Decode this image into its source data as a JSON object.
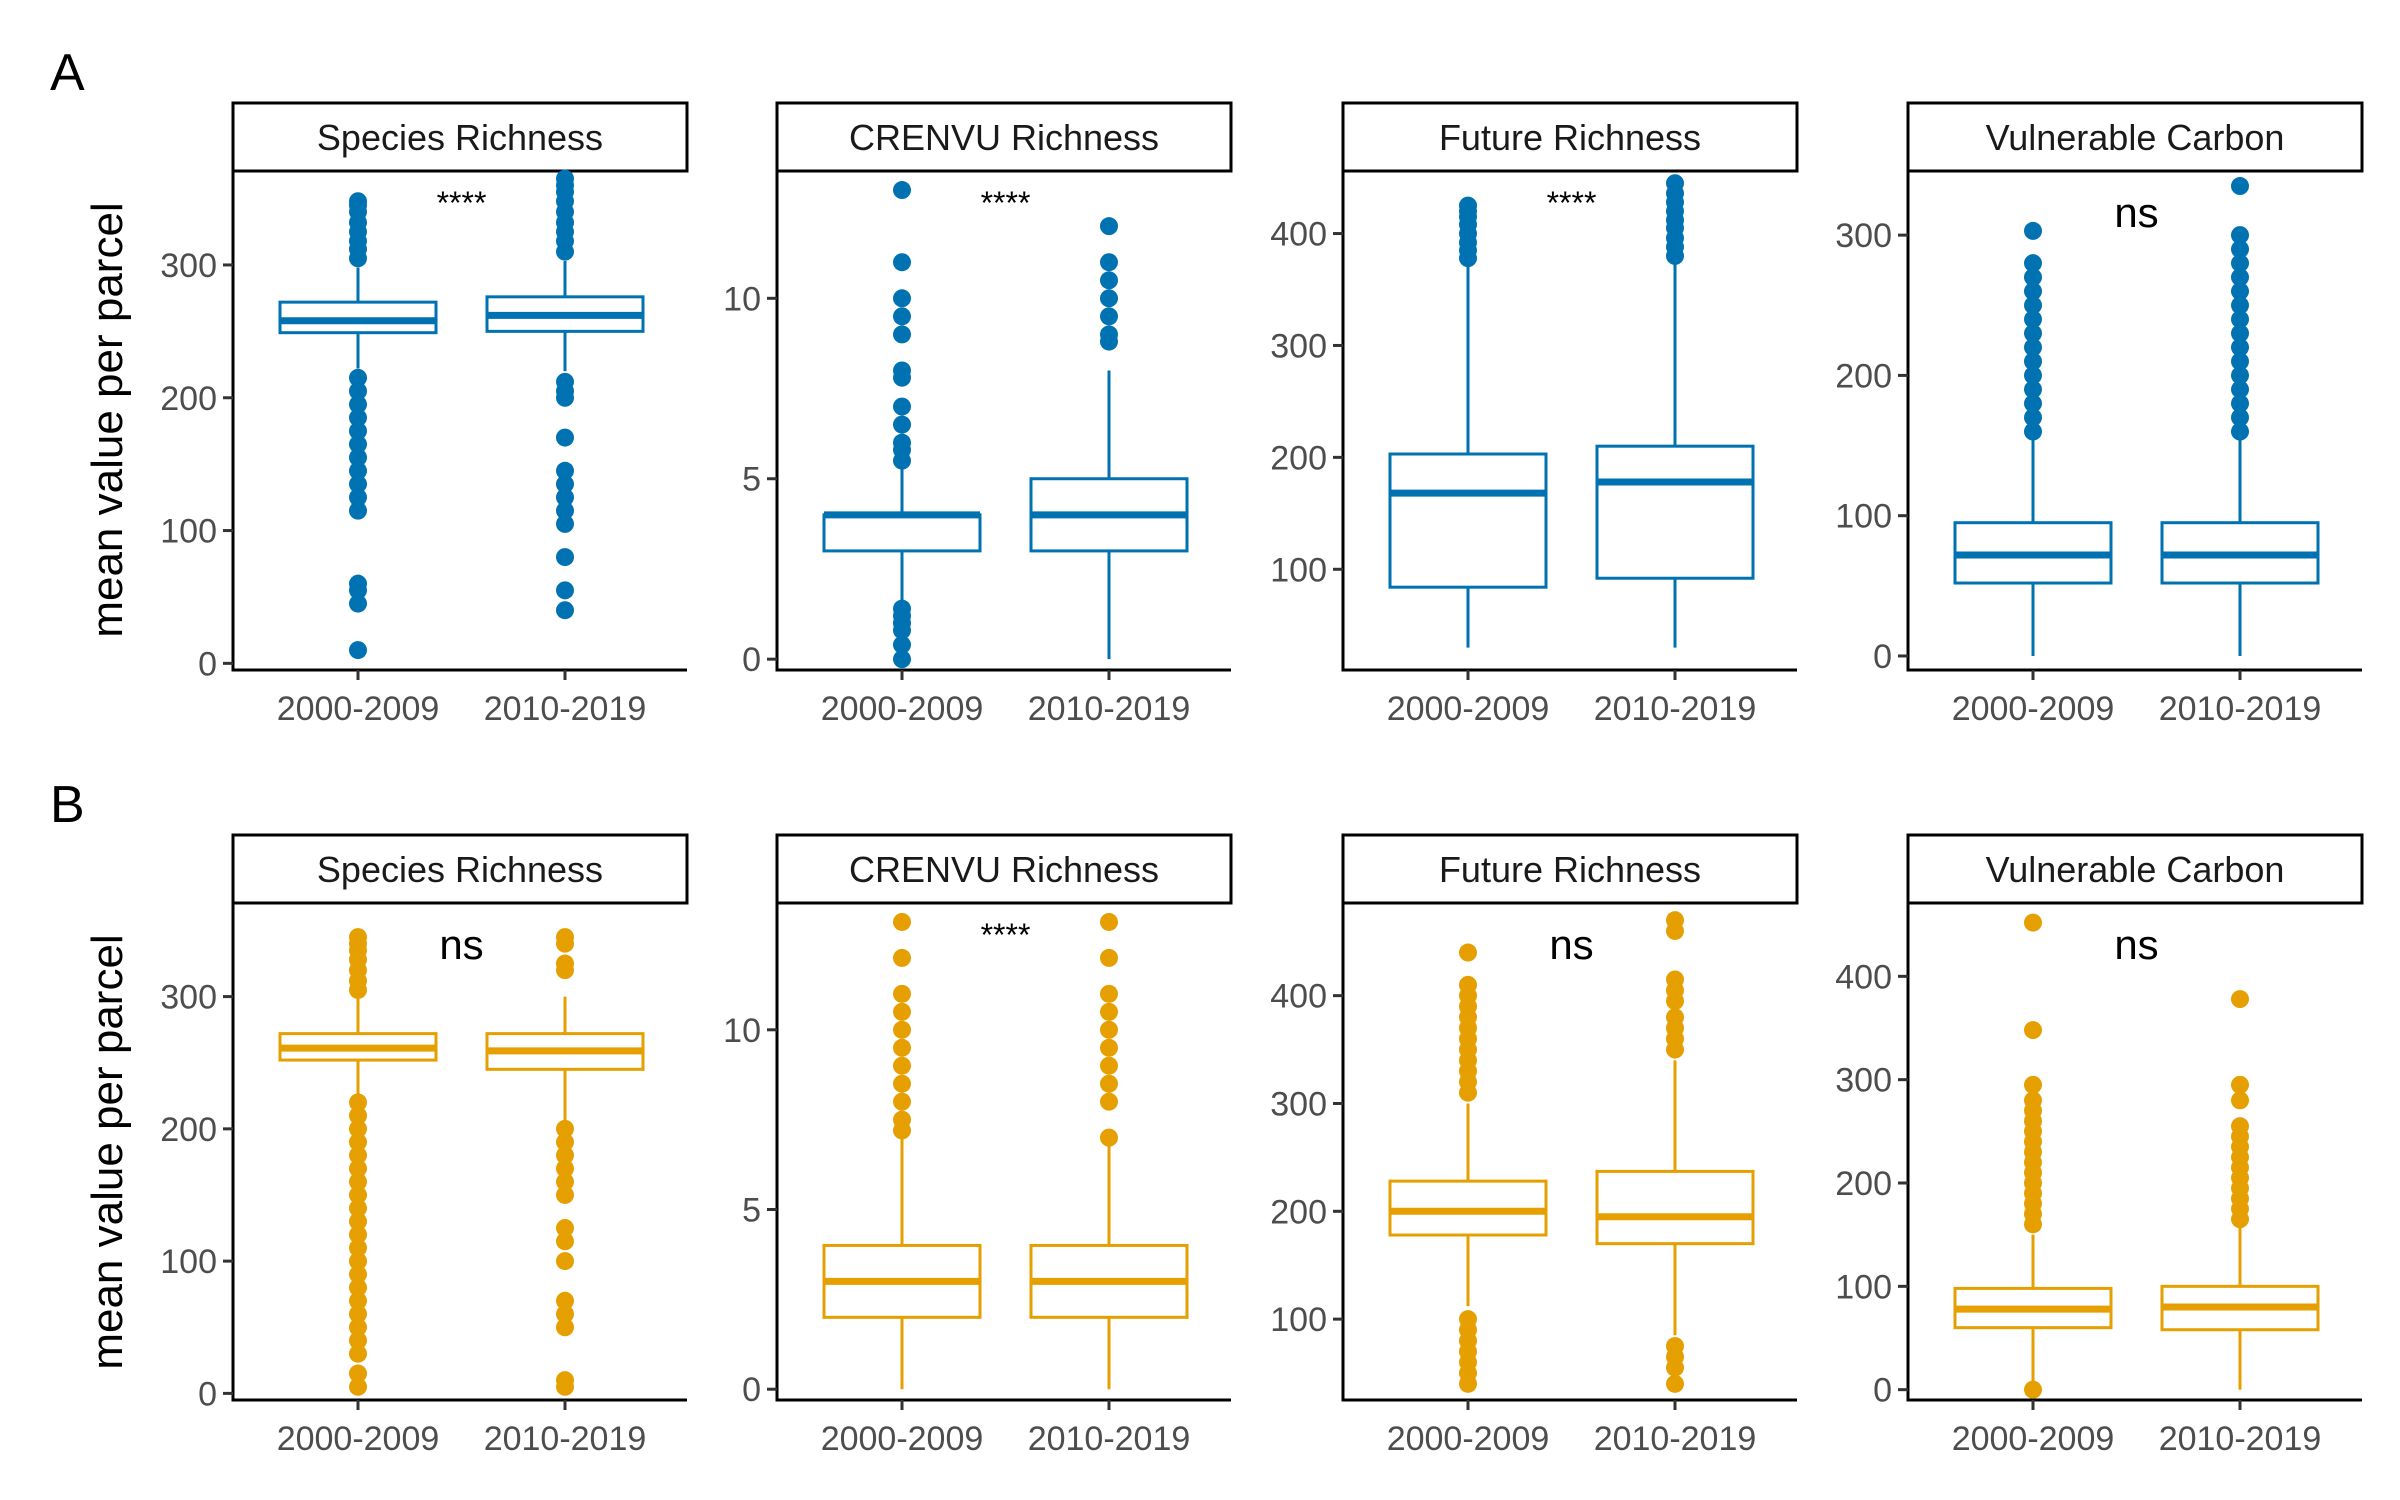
{
  "figure": {
    "rows": [
      {
        "label": "A",
        "color": "#0072B2"
      },
      {
        "label": "B",
        "color": "#E69F00"
      }
    ],
    "ylabel": "mean value per parcel",
    "categories": [
      "2000-2009",
      "2010-2019"
    ]
  },
  "chart_data": [
    {
      "type": "box",
      "row": "A",
      "title": "Species Richness",
      "ylim": [
        -5,
        370
      ],
      "yticks": [
        0,
        100,
        200,
        300
      ],
      "significance": "****",
      "categories": [
        "2000-2009",
        "2010-2019"
      ],
      "boxes": [
        {
          "q1": 249,
          "median": 258,
          "q3": 272,
          "whisker_low": 222,
          "whisker_high": 298,
          "outliers": [
            10,
            45,
            55,
            60,
            115,
            125,
            135,
            145,
            155,
            165,
            175,
            185,
            195,
            205,
            215,
            305,
            312,
            318,
            325,
            332,
            340,
            345,
            348
          ]
        },
        {
          "q1": 250,
          "median": 262,
          "q3": 276,
          "whisker_low": 220,
          "whisker_high": 303,
          "outliers": [
            40,
            55,
            80,
            105,
            115,
            125,
            135,
            145,
            170,
            200,
            205,
            212,
            310,
            318,
            325,
            332,
            340,
            348,
            355,
            360,
            365
          ]
        }
      ]
    },
    {
      "type": "box",
      "row": "A",
      "title": "CRENVU Richness",
      "ylim": [
        -0.3,
        13.5
      ],
      "yticks": [
        0,
        5,
        10
      ],
      "significance": "****",
      "categories": [
        "2000-2009",
        "2010-2019"
      ],
      "boxes": [
        {
          "q1": 3,
          "median": 4,
          "q3": 4,
          "whisker_low": 1.6,
          "whisker_high": 5.4,
          "outliers": [
            0,
            0.4,
            0.8,
            1,
            1.2,
            1.4,
            5.5,
            5.8,
            6,
            6.5,
            7,
            7.8,
            8,
            9,
            9.5,
            10,
            11,
            13
          ]
        },
        {
          "q1": 3,
          "median": 4,
          "q3": 5,
          "whisker_low": 0,
          "whisker_high": 8,
          "outliers": [
            8.8,
            9,
            9.5,
            10,
            10.5,
            11,
            12
          ]
        }
      ]
    },
    {
      "type": "box",
      "row": "A",
      "title": "Future Richness",
      "ylim": [
        10,
        455
      ],
      "yticks": [
        100,
        200,
        300,
        400
      ],
      "significance": "****",
      "categories": [
        "2000-2009",
        "2010-2019"
      ],
      "boxes": [
        {
          "q1": 84,
          "median": 168,
          "q3": 203,
          "whisker_low": 30,
          "whisker_high": 375,
          "outliers": [
            378,
            385,
            392,
            400,
            408,
            415,
            420,
            425
          ]
        },
        {
          "q1": 92,
          "median": 178,
          "q3": 210,
          "whisker_low": 30,
          "whisker_high": 378,
          "outliers": [
            380,
            388,
            396,
            405,
            412,
            420,
            428,
            436,
            445
          ]
        }
      ]
    },
    {
      "type": "box",
      "row": "A",
      "title": "Vulnerable Carbon",
      "ylim": [
        -10,
        345
      ],
      "yticks": [
        0,
        100,
        200,
        300
      ],
      "significance": "ns",
      "categories": [
        "2000-2009",
        "2010-2019"
      ],
      "boxes": [
        {
          "q1": 52,
          "median": 72,
          "q3": 95,
          "whisker_low": 0,
          "whisker_high": 155,
          "outliers": [
            160,
            170,
            180,
            190,
            200,
            210,
            220,
            230,
            240,
            250,
            260,
            270,
            280,
            303
          ]
        },
        {
          "q1": 52,
          "median": 72,
          "q3": 95,
          "whisker_low": 0,
          "whisker_high": 155,
          "outliers": [
            160,
            170,
            180,
            190,
            200,
            210,
            220,
            230,
            240,
            250,
            260,
            270,
            280,
            290,
            300,
            335
          ]
        }
      ]
    },
    {
      "type": "box",
      "row": "B",
      "title": "Species Richness",
      "ylim": [
        -5,
        370
      ],
      "yticks": [
        0,
        100,
        200,
        300
      ],
      "significance": "ns",
      "categories": [
        "2000-2009",
        "2010-2019"
      ],
      "boxes": [
        {
          "q1": 252,
          "median": 261,
          "q3": 272,
          "whisker_low": 225,
          "whisker_high": 300,
          "outliers": [
            5,
            15,
            30,
            40,
            50,
            60,
            70,
            80,
            90,
            100,
            110,
            120,
            130,
            140,
            150,
            160,
            170,
            180,
            190,
            200,
            210,
            220,
            305,
            312,
            320,
            328,
            335,
            340,
            345
          ]
        },
        {
          "q1": 245,
          "median": 259,
          "q3": 272,
          "whisker_low": 205,
          "whisker_high": 300,
          "outliers": [
            5,
            10,
            50,
            60,
            70,
            100,
            115,
            125,
            150,
            160,
            170,
            180,
            190,
            200,
            320,
            325,
            340,
            345
          ]
        }
      ]
    },
    {
      "type": "box",
      "row": "B",
      "title": "CRENVU Richness",
      "ylim": [
        -0.3,
        13.5
      ],
      "yticks": [
        0,
        5,
        10
      ],
      "significance": "****",
      "categories": [
        "2000-2009",
        "2010-2019"
      ],
      "boxes": [
        {
          "q1": 2,
          "median": 3,
          "q3": 4,
          "whisker_low": 0,
          "whisker_high": 7,
          "outliers": [
            7.2,
            7.5,
            8,
            8.5,
            9,
            9.5,
            10,
            10.5,
            11,
            12,
            13
          ]
        },
        {
          "q1": 2,
          "median": 3,
          "q3": 4,
          "whisker_low": 0,
          "whisker_high": 7,
          "outliers": [
            7,
            8,
            8.5,
            9,
            9.5,
            10,
            10.5,
            11,
            12,
            13
          ]
        }
      ]
    },
    {
      "type": "box",
      "row": "B",
      "title": "Future Richness",
      "ylim": [
        25,
        485
      ],
      "yticks": [
        100,
        200,
        300,
        400
      ],
      "significance": "ns",
      "categories": [
        "2000-2009",
        "2010-2019"
      ],
      "boxes": [
        {
          "q1": 178,
          "median": 200,
          "q3": 228,
          "whisker_low": 112,
          "whisker_high": 300,
          "outliers": [
            40,
            50,
            60,
            70,
            80,
            90,
            100,
            310,
            320,
            330,
            340,
            350,
            360,
            370,
            380,
            390,
            400,
            410,
            440
          ]
        },
        {
          "q1": 170,
          "median": 195,
          "q3": 237,
          "whisker_low": 85,
          "whisker_high": 340,
          "outliers": [
            40,
            55,
            65,
            75,
            350,
            360,
            370,
            380,
            395,
            405,
            415,
            460,
            470
          ]
        }
      ]
    },
    {
      "type": "box",
      "row": "B",
      "title": "Vulnerable Carbon",
      "ylim": [
        -10,
        470
      ],
      "yticks": [
        0,
        100,
        200,
        300,
        400
      ],
      "significance": "ns",
      "categories": [
        "2000-2009",
        "2010-2019"
      ],
      "boxes": [
        {
          "q1": 60,
          "median": 78,
          "q3": 98,
          "whisker_low": 5,
          "whisker_high": 150,
          "outliers": [
            0,
            160,
            170,
            180,
            190,
            200,
            210,
            220,
            230,
            240,
            250,
            260,
            270,
            280,
            295,
            348,
            452
          ]
        },
        {
          "q1": 58,
          "median": 80,
          "q3": 100,
          "whisker_low": 0,
          "whisker_high": 160,
          "outliers": [
            165,
            175,
            185,
            195,
            205,
            215,
            225,
            235,
            245,
            255,
            280,
            295,
            378
          ]
        }
      ]
    }
  ]
}
